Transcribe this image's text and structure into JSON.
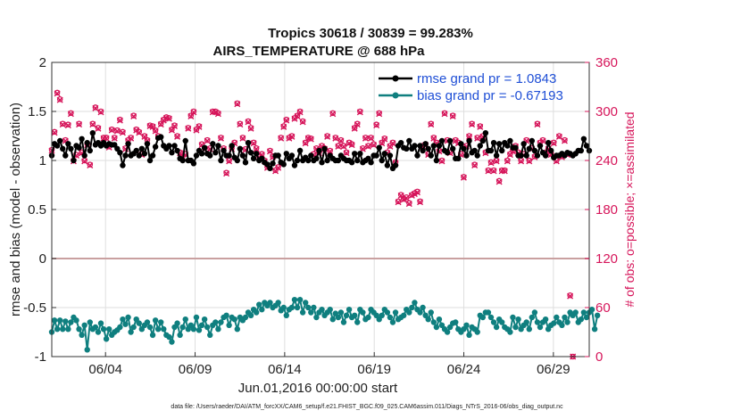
{
  "chart_data": {
    "type": "line",
    "title": "Tropics 30618 / 30839 = 99.283%",
    "subtitle": "AIRS_TEMPERATURE @ 688 hPa",
    "xlabel": "Jun.01,2016 00:00:00 start",
    "ylabel": "rmse and bias (model - observation)",
    "y2label": "# of obs: o=possible; ×=assimilated",
    "footnote": "data file: /Users/raeder/DAI/ATM_forcXX/CAM6_setup/f.e21.FHIST_BGC.f09_025.CAM6assim.011/Diags_NTrS_2016-06/obs_diag_output.nc",
    "xlim": [
      1.0,
      31.0
    ],
    "ylim": [
      -1,
      2
    ],
    "y2lim": [
      0,
      360
    ],
    "x_ticks": [
      4,
      9,
      14,
      19,
      24,
      29
    ],
    "x_tick_labels": [
      "06/04",
      "06/09",
      "06/14",
      "06/19",
      "06/24",
      "06/29"
    ],
    "y_ticks": [
      -1,
      -0.5,
      0,
      0.5,
      1,
      1.5,
      2
    ],
    "y_tick_labels": [
      "-1",
      "-0.5",
      "0",
      "0.5",
      "1",
      "1.5",
      "2"
    ],
    "y2_ticks": [
      0,
      60,
      120,
      180,
      240,
      300,
      360
    ],
    "y2_tick_labels": [
      "0",
      "60",
      "120",
      "180",
      "240",
      "300",
      "360"
    ],
    "grid": true,
    "legend_position": "top-right",
    "colors": {
      "rmse": "#000000",
      "bias": "#0f7f7f",
      "obs": "#d6155a",
      "zero_line": "#c9a0a0",
      "legend_text": "#1f4fd6"
    },
    "series": [
      {
        "name": "rmse grand pr = 1.0843",
        "axis": "left",
        "values": [
          1.05,
          1.17,
          1.15,
          1.2,
          1.12,
          1.05,
          1.17,
          1.12,
          1.0,
          1.15,
          1.13,
          1.22,
          1.05,
          1.18,
          1.1,
          1.28,
          1.16,
          1.18,
          1.15,
          1.18,
          1.15,
          1.17,
          1.16,
          1.16,
          1.12,
          1.08,
          0.95,
          1.05,
          1.17,
          1.05,
          1.07,
          1.1,
          1.05,
          1.12,
          1.07,
          1.17,
          1.0,
          1.05,
          1.14,
          1.23,
          1.24,
          1.15,
          1.12,
          1.15,
          1.08,
          1.15,
          1.1,
          1.02,
          1.0,
          1.2,
          1.0,
          1.0,
          0.97,
          1.05,
          1.1,
          1.07,
          1.13,
          1.07,
          1.05,
          1.17,
          1.08,
          1.15,
          1.0,
          1.1,
          1.05,
          1.05,
          1.15,
          1.03,
          1.0,
          1.12,
          1.05,
          0.98,
          1.18,
          1.08,
          1.02,
          1.07,
          1.0,
          1.02,
          0.98,
          0.96,
          0.92,
          0.97,
          1.05,
          1.05,
          0.98,
          0.96,
          1.07,
          1.02,
          1.05,
          0.95,
          1.0,
          1.1,
          1.0,
          1.03,
          1.0,
          1.05,
          1.0,
          1.02,
          1.1,
          0.98,
          1.12,
          1.0,
          1.05,
          1.02,
          1.0,
          1.0,
          1.05,
          1.02,
          1.0,
          1.0,
          0.98,
          1.07,
          1.0,
          1.07,
          0.98,
          1.0,
          1.02,
          0.98,
          1.05,
          1.05,
          1.13,
          1.0,
          1.07,
          0.95,
          1.05,
          0.92,
          0.95,
          1.15,
          1.18,
          1.13,
          1.12,
          1.2,
          1.12,
          1.15,
          1.05,
          1.15,
          1.1,
          1.17,
          1.12,
          1.05,
          1.15,
          1.0,
          1.15,
          1.2,
          1.1,
          1.08,
          1.2,
          1.12,
          1.02,
          1.02,
          1.17,
          1.12,
          1.05,
          1.2,
          1.08,
          1.1,
          1.05,
          1.15,
          1.2,
          1.28,
          1.1,
          1.1,
          1.18,
          1.05,
          1.17,
          1.1,
          1.18,
          1.15,
          1.2,
          1.13,
          1.13,
          1.05,
          1.05,
          1.17,
          1.05,
          1.12,
          1.2,
          1.1,
          1.05,
          1.15,
          1.08,
          1.05,
          1.18,
          1.1,
          1.03,
          1.05,
          1.05,
          1.07,
          1.05,
          1.08,
          1.07,
          1.05,
          1.07,
          1.1,
          1.1,
          1.22,
          1.15,
          1.1
        ]
      },
      {
        "name": "bias grand pr = -0.67193",
        "axis": "left",
        "values": [
          -0.75,
          -0.63,
          -0.72,
          -0.63,
          -0.72,
          -0.64,
          -0.72,
          -0.65,
          -0.6,
          -0.63,
          -0.72,
          -0.78,
          -0.68,
          -0.93,
          -0.65,
          -0.72,
          -0.7,
          -0.75,
          -0.66,
          -0.72,
          -0.82,
          -0.72,
          -0.78,
          -0.75,
          -0.73,
          -0.7,
          -0.62,
          -0.67,
          -0.6,
          -0.75,
          -0.7,
          -0.62,
          -0.66,
          -0.72,
          -0.68,
          -0.65,
          -0.7,
          -0.78,
          -0.63,
          -0.72,
          -0.65,
          -0.72,
          -0.78,
          -0.8,
          -0.85,
          -0.7,
          -0.66,
          -0.78,
          -0.7,
          -0.62,
          -0.72,
          -0.68,
          -0.72,
          -0.6,
          -0.73,
          -0.68,
          -0.62,
          -0.7,
          -0.78,
          -0.68,
          -0.65,
          -0.72,
          -0.65,
          -0.6,
          -0.58,
          -0.68,
          -0.6,
          -0.62,
          -0.72,
          -0.6,
          -0.63,
          -0.6,
          -0.55,
          -0.58,
          -0.52,
          -0.55,
          -0.47,
          -0.52,
          -0.45,
          -0.48,
          -0.45,
          -0.5,
          -0.48,
          -0.45,
          -0.53,
          -0.5,
          -0.58,
          -0.52,
          -0.5,
          -0.42,
          -0.5,
          -0.42,
          -0.55,
          -0.45,
          -0.5,
          -0.55,
          -0.5,
          -0.6,
          -0.55,
          -0.52,
          -0.58,
          -0.55,
          -0.52,
          -0.62,
          -0.56,
          -0.6,
          -0.55,
          -0.65,
          -0.58,
          -0.52,
          -0.6,
          -0.58,
          -0.65,
          -0.52,
          -0.55,
          -0.62,
          -0.6,
          -0.52,
          -0.55,
          -0.58,
          -0.62,
          -0.58,
          -0.52,
          -0.55,
          -0.6,
          -0.65,
          -0.55,
          -0.62,
          -0.6,
          -0.58,
          -0.52,
          -0.55,
          -0.5,
          -0.45,
          -0.52,
          -0.55,
          -0.5,
          -0.58,
          -0.62,
          -0.55,
          -0.65,
          -0.7,
          -0.62,
          -0.68,
          -0.72,
          -0.75,
          -0.7,
          -0.66,
          -0.65,
          -0.72,
          -0.75,
          -0.72,
          -0.68,
          -0.78,
          -0.7,
          -0.72,
          -0.75,
          -0.58,
          -0.6,
          -0.55,
          -0.55,
          -0.6,
          -0.65,
          -0.7,
          -0.62,
          -0.65,
          -0.7,
          -0.72,
          -0.75,
          -0.6,
          -0.7,
          -0.62,
          -0.72,
          -0.68,
          -0.65,
          -0.72,
          -0.6,
          -0.55,
          -0.65,
          -0.7,
          -0.65,
          -0.62,
          -0.72,
          -0.68,
          -0.66,
          -0.6,
          -0.65,
          -0.68,
          -0.6,
          -0.65,
          -0.55,
          -0.58,
          -0.55,
          -0.65,
          -0.62,
          -0.55,
          -0.6,
          -0.55,
          -0.52,
          -0.72,
          -0.58
        ]
      },
      {
        "name": "obs possible (o)",
        "axis": "right",
        "values": [
          253,
          275,
          323,
          315,
          285,
          265,
          284,
          298,
          240,
          247,
          285,
          250,
          240,
          260,
          235,
          285,
          305,
          280,
          300,
          268,
          268,
          257,
          278,
          268,
          277,
          290,
          275,
          255,
          265,
          268,
          295,
          278,
          275,
          248,
          270,
          265,
          283,
          282,
          277,
          270,
          285,
          290,
          293,
          292,
          278,
          283,
          270,
          250,
          245,
          248,
          280,
          295,
          300,
          278,
          282,
          260,
          255,
          265,
          255,
          300,
          300,
          298,
          268,
          255,
          225,
          240,
          255,
          262,
          310,
          285,
          268,
          254,
          288,
          280,
          262,
          255,
          245,
          248,
          240,
          232,
          252,
          245,
          228,
          232,
          268,
          282,
          290,
          268,
          270,
          292,
          295,
          300,
          288,
          262,
          268,
          267,
          248,
          255,
          250,
          258,
          255,
          270,
          252,
          298,
          268,
          258,
          265,
          258,
          250,
          262,
          260,
          280,
          285,
          300,
          255,
          268,
          258,
          268,
          260,
          284,
          298,
          262,
          267,
          250,
          258,
          262,
          238,
          190,
          198,
          193,
          195,
          188,
          198,
          200,
          202,
          190,
          258,
          260,
          248,
          285,
          268,
          262,
          252,
          240,
          298,
          265,
          250,
          295,
          265,
          262,
          248,
          220,
          258,
          270,
          285,
          235,
          268,
          282,
          270,
          250,
          228,
          238,
          228,
          240,
          215,
          228,
          228,
          240,
          248,
          252,
          258,
          250,
          240,
          248,
          265,
          240,
          255,
          245,
          285,
          262,
          265,
          250,
          255,
          248,
          262,
          240,
          270,
          245,
          265,
          248,
          75,
          0
        ]
      },
      {
        "name": "obs assimilated (×)",
        "axis": "right",
        "values": [
          252,
          274,
          322,
          314,
          284,
          264,
          283,
          297,
          239,
          246,
          284,
          249,
          239,
          259,
          234,
          284,
          304,
          279,
          299,
          267,
          267,
          256,
          277,
          267,
          276,
          289,
          274,
          254,
          264,
          267,
          294,
          277,
          274,
          247,
          269,
          264,
          282,
          281,
          276,
          269,
          284,
          289,
          292,
          291,
          277,
          282,
          269,
          249,
          244,
          247,
          279,
          294,
          299,
          277,
          281,
          259,
          254,
          264,
          254,
          299,
          299,
          297,
          267,
          254,
          224,
          239,
          254,
          261,
          309,
          284,
          267,
          253,
          287,
          279,
          261,
          254,
          244,
          247,
          239,
          231,
          251,
          244,
          227,
          231,
          267,
          281,
          289,
          267,
          269,
          291,
          294,
          299,
          287,
          261,
          267,
          266,
          247,
          254,
          249,
          257,
          254,
          269,
          251,
          297,
          267,
          257,
          264,
          257,
          249,
          261,
          259,
          279,
          284,
          299,
          254,
          267,
          257,
          267,
          259,
          283,
          297,
          261,
          266,
          249,
          257,
          261,
          237,
          189,
          197,
          192,
          194,
          187,
          197,
          199,
          201,
          189,
          257,
          259,
          247,
          284,
          267,
          261,
          251,
          239,
          297,
          264,
          249,
          294,
          264,
          261,
          247,
          219,
          257,
          269,
          284,
          234,
          267,
          281,
          269,
          249,
          227,
          237,
          227,
          239,
          214,
          227,
          227,
          239,
          247,
          251,
          257,
          249,
          239,
          247,
          264,
          239,
          254,
          244,
          284,
          261,
          264,
          249,
          254,
          247,
          261,
          239,
          269,
          244,
          264,
          247,
          74,
          0
        ]
      }
    ]
  }
}
